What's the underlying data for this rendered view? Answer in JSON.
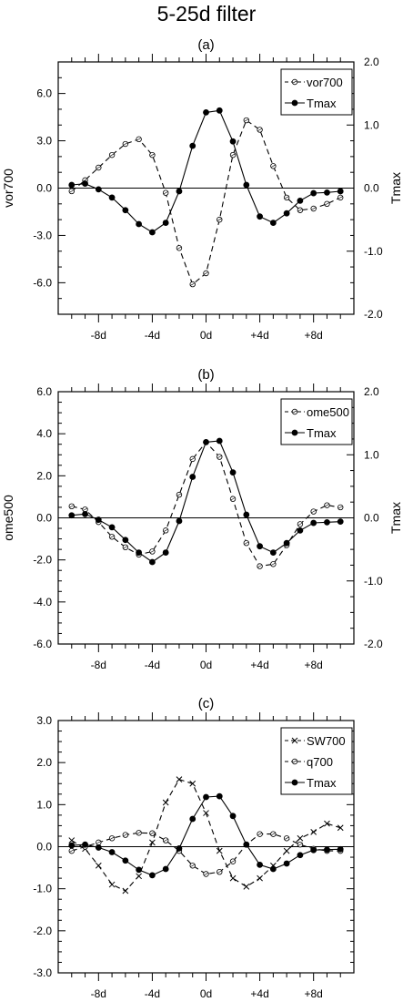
{
  "figure": {
    "title": "5-25d filter"
  },
  "chart_data": [
    {
      "type": "line",
      "panel_label": "(a)",
      "x": [
        -10,
        -9,
        -8,
        -7,
        -6,
        -5,
        -4,
        -3,
        -2,
        -1,
        0,
        1,
        2,
        3,
        4,
        5,
        6,
        7,
        8,
        9,
        10
      ],
      "xticks": [
        "-8d",
        "-4d",
        "0d",
        "+4d",
        "+8d"
      ],
      "xtick_values": [
        -8,
        -4,
        0,
        4,
        8
      ],
      "xlim": [
        -11,
        11
      ],
      "left_axis": {
        "label": "vor700",
        "ylim": [
          -8,
          8
        ],
        "ticks": [
          "-6.0",
          "-3.0",
          "0.0",
          "3.0",
          "6.0"
        ],
        "tick_values": [
          -6,
          -3,
          0,
          3,
          6
        ],
        "minor_step": 1
      },
      "right_axis": {
        "label": "Tmax",
        "ylim": [
          -2,
          2
        ],
        "ticks": [
          "-2.0",
          "-1.0",
          "0.0",
          "1.0",
          "2.0"
        ],
        "tick_values": [
          -2,
          -1,
          0,
          1,
          2
        ],
        "minor_step": 0.25
      },
      "zero_line": true,
      "legend_position": "top-right",
      "series": [
        {
          "name": "vor700",
          "marker": "open-circle",
          "dash": true,
          "axis": "left",
          "values": [
            -0.2,
            0.5,
            1.3,
            2.1,
            2.8,
            3.1,
            2.1,
            -0.3,
            -3.8,
            -6.1,
            -5.4,
            -2.0,
            2.1,
            4.3,
            3.7,
            1.4,
            -0.6,
            -1.4,
            -1.3,
            -1.0,
            -0.6
          ]
        },
        {
          "name": "Tmax",
          "marker": "filled-circle",
          "dash": false,
          "axis": "right",
          "values": [
            0.05,
            0.07,
            -0.02,
            -0.15,
            -0.35,
            -0.57,
            -0.7,
            -0.55,
            -0.05,
            0.67,
            1.2,
            1.23,
            0.74,
            0.05,
            -0.45,
            -0.55,
            -0.4,
            -0.2,
            -0.08,
            -0.07,
            -0.05
          ]
        }
      ]
    },
    {
      "type": "line",
      "panel_label": "(b)",
      "x": [
        -10,
        -9,
        -8,
        -7,
        -6,
        -5,
        -4,
        -3,
        -2,
        -1,
        0,
        1,
        2,
        3,
        4,
        5,
        6,
        7,
        8,
        9,
        10
      ],
      "xticks": [
        "-8d",
        "-4d",
        "0d",
        "+4d",
        "+8d"
      ],
      "xtick_values": [
        -8,
        -4,
        0,
        4,
        8
      ],
      "xlim": [
        -11,
        11
      ],
      "left_axis": {
        "label": "ome500",
        "ylim": [
          -6,
          6
        ],
        "ticks": [
          "-6.0",
          "-4.0",
          "-2.0",
          "0.0",
          "2.0",
          "4.0",
          "6.0"
        ],
        "tick_values": [
          -6,
          -4,
          -2,
          0,
          2,
          4,
          6
        ],
        "minor_step": 0.5
      },
      "right_axis": {
        "label": "Tmax",
        "ylim": [
          -2,
          2
        ],
        "ticks": [
          "-2.0",
          "-1.0",
          "0.0",
          "1.0",
          "2.0"
        ],
        "tick_values": [
          -2,
          -1,
          0,
          1,
          2
        ],
        "minor_step": 0.25
      },
      "zero_line": true,
      "legend_position": "top-right",
      "series": [
        {
          "name": "ome500",
          "marker": "open-circle",
          "dash": true,
          "axis": "left",
          "values": [
            0.55,
            0.4,
            -0.2,
            -0.9,
            -1.4,
            -1.75,
            -1.6,
            -0.6,
            1.1,
            2.8,
            3.6,
            2.9,
            0.9,
            -1.2,
            -2.3,
            -2.2,
            -1.3,
            -0.3,
            0.3,
            0.6,
            0.5
          ]
        },
        {
          "name": "Tmax",
          "marker": "filled-circle",
          "dash": false,
          "axis": "right",
          "values": [
            0.04,
            0.06,
            -0.03,
            -0.15,
            -0.35,
            -0.55,
            -0.7,
            -0.55,
            -0.05,
            0.65,
            1.2,
            1.22,
            0.72,
            0.05,
            -0.45,
            -0.55,
            -0.4,
            -0.2,
            -0.08,
            -0.07,
            -0.06
          ]
        }
      ]
    },
    {
      "type": "line",
      "panel_label": "(c)",
      "x": [
        -10,
        -9,
        -8,
        -7,
        -6,
        -5,
        -4,
        -3,
        -2,
        -1,
        0,
        1,
        2,
        3,
        4,
        5,
        6,
        7,
        8,
        9,
        10
      ],
      "xticks": [
        "-8d",
        "-4d",
        "0d",
        "+4d",
        "+8d"
      ],
      "xtick_values": [
        -8,
        -4,
        0,
        4,
        8
      ],
      "xlim": [
        -11,
        11
      ],
      "left_axis": {
        "label": "",
        "ylim": [
          -3,
          3
        ],
        "ticks": [
          "-3.0",
          "-2.0",
          "-1.0",
          "0.0",
          "1.0",
          "2.0",
          "3.0"
        ],
        "tick_values": [
          -3,
          -2,
          -1,
          0,
          1,
          2,
          3
        ],
        "minor_step": 0.25
      },
      "zero_line": true,
      "legend_position": "top-right",
      "series": [
        {
          "name": "SW700",
          "marker": "cross",
          "dash": true,
          "axis": "left",
          "values": [
            0.15,
            -0.05,
            -0.45,
            -0.9,
            -1.05,
            -0.7,
            0.1,
            1.05,
            1.6,
            1.5,
            0.8,
            -0.1,
            -0.75,
            -0.95,
            -0.75,
            -0.45,
            -0.1,
            0.2,
            0.35,
            0.55,
            0.45
          ]
        },
        {
          "name": "q700",
          "marker": "open-circle",
          "dash": true,
          "axis": "left",
          "values": [
            -0.1,
            0.0,
            0.1,
            0.2,
            0.28,
            0.33,
            0.32,
            0.15,
            -0.1,
            -0.45,
            -0.65,
            -0.6,
            -0.35,
            0.05,
            0.3,
            0.3,
            0.2,
            0.05,
            -0.05,
            -0.1,
            -0.1
          ]
        },
        {
          "name": "Tmax",
          "marker": "filled-circle",
          "dash": false,
          "axis": "left",
          "values": [
            0.03,
            0.05,
            -0.02,
            -0.13,
            -0.33,
            -0.55,
            -0.68,
            -0.53,
            -0.04,
            0.66,
            1.18,
            1.2,
            0.73,
            0.05,
            -0.43,
            -0.53,
            -0.4,
            -0.2,
            -0.08,
            -0.07,
            -0.06
          ]
        }
      ]
    }
  ]
}
